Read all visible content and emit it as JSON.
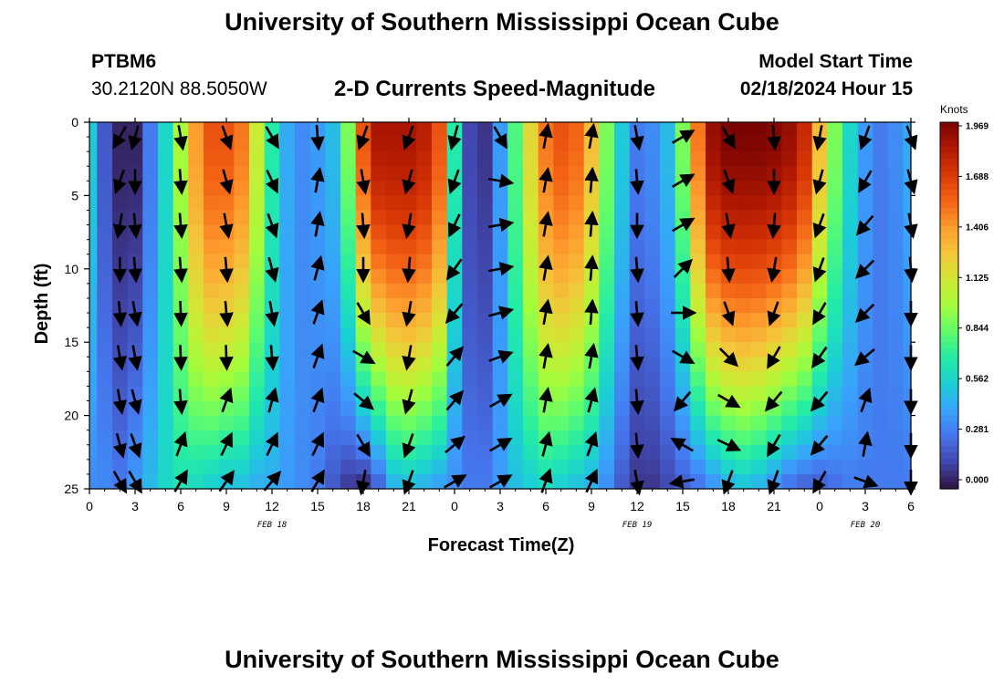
{
  "header": {
    "main_title": "University of Southern Mississippi Ocean Cube",
    "station_id": "PTBM6",
    "station_coords": "30.2120N  88.5050W",
    "plot_title": "2-D Currents Speed-Magnitude",
    "model_label": "Model Start Time",
    "model_time": "02/18/2024 Hour 15"
  },
  "footer": {
    "repeat_title": "University of Southern Mississippi Ocean Cube"
  },
  "chart_data": {
    "type": "heatmap",
    "title": "2-D Currents Speed-Magnitude",
    "xlabel": "Forecast Time(Z)",
    "ylabel": "Depth (ft)",
    "x_tick_labels": [
      "0",
      "3",
      "6",
      "9",
      "12",
      "15",
      "18",
      "21",
      "0",
      "3",
      "6",
      "9",
      "12",
      "15",
      "18",
      "21",
      "0",
      "3",
      "6"
    ],
    "x_range_hours": [
      0,
      54
    ],
    "y_ticks": [
      0,
      5,
      10,
      15,
      20,
      25
    ],
    "y_range_ft": [
      0,
      25
    ],
    "y_inverted": true,
    "day_labels": [
      {
        "text": "FEB 18",
        "hour": 12
      },
      {
        "text": "FEB 19",
        "hour": 36
      },
      {
        "text": "FEB 20",
        "hour": 51
      }
    ],
    "colorbar": {
      "unit": "Knots",
      "range": [
        0,
        1.969
      ],
      "tick_labels": [
        "1.969",
        "1.688",
        "1.406",
        "1.125",
        "0.844",
        "0.562",
        "0.281",
        "0.000"
      ],
      "colormap": [
        "#30123b",
        "#4145ab",
        "#4675ed",
        "#39a2fc",
        "#1bcfd4",
        "#24eca6",
        "#61fc6c",
        "#a4fc3b",
        "#d1e834",
        "#f3c63a",
        "#fe9b2d",
        "#f36315",
        "#d93806",
        "#b11901",
        "#7a0402"
      ]
    },
    "speed_field": {
      "description": "current speed in knots, piecewise profiles",
      "hours": [
        0,
        1,
        2,
        3,
        4,
        5,
        6,
        7,
        8,
        9,
        10,
        11,
        12,
        13,
        14,
        15,
        16,
        17,
        18,
        19,
        20,
        21,
        22,
        23,
        24,
        25,
        26,
        27,
        28,
        29,
        30,
        31,
        32,
        33,
        34,
        35,
        36,
        37,
        38,
        39,
        40,
        41,
        42,
        43,
        44,
        45,
        46,
        47,
        48,
        49,
        50,
        51,
        52,
        53,
        54
      ],
      "surface_knots": [
        0.55,
        0.2,
        0.05,
        0.05,
        0.3,
        0.6,
        1.0,
        1.4,
        1.6,
        1.6,
        1.5,
        1.1,
        0.7,
        0.45,
        0.35,
        0.4,
        0.5,
        0.9,
        1.6,
        1.85,
        1.85,
        1.85,
        1.8,
        1.6,
        0.7,
        0.15,
        0.1,
        0.4,
        0.8,
        1.2,
        1.5,
        1.6,
        1.55,
        1.3,
        0.9,
        0.55,
        0.3,
        0.35,
        0.5,
        0.9,
        1.5,
        1.9,
        1.97,
        1.97,
        1.97,
        1.95,
        1.9,
        1.75,
        1.3,
        0.9,
        0.6,
        0.4,
        0.3,
        0.35,
        0.45
      ],
      "bottom_knots": [
        0.35,
        0.35,
        0.3,
        0.4,
        0.5,
        0.6,
        0.65,
        0.6,
        0.55,
        0.5,
        0.5,
        0.45,
        0.45,
        0.4,
        0.35,
        0.3,
        0.2,
        0.1,
        0.05,
        0.2,
        0.45,
        0.5,
        0.45,
        0.4,
        0.35,
        0.3,
        0.3,
        0.4,
        0.5,
        0.55,
        0.6,
        0.55,
        0.5,
        0.45,
        0.35,
        0.2,
        0.1,
        0.1,
        0.15,
        0.2,
        0.25,
        0.35,
        0.45,
        0.5,
        0.45,
        0.35,
        0.25,
        0.2,
        0.2,
        0.25,
        0.3,
        0.3,
        0.3,
        0.3,
        0.3
      ]
    },
    "vectors": {
      "hours": [
        2,
        3,
        6,
        9,
        12,
        15,
        18,
        21,
        24,
        27,
        30,
        33,
        36,
        39,
        42,
        45,
        48,
        51,
        54
      ],
      "depths_ft": [
        1,
        4,
        7,
        10,
        13,
        16,
        19,
        22,
        24.5
      ],
      "directions_deg_from_north": [
        [
          210,
          200,
          190,
          180,
          175,
          170,
          170,
          165,
          150
        ],
        [
          195,
          180,
          175,
          175,
          170,
          170,
          165,
          160,
          150
        ],
        [
          170,
          175,
          175,
          175,
          178,
          178,
          175,
          20,
          30
        ],
        [
          160,
          165,
          170,
          175,
          175,
          178,
          20,
          25,
          35
        ],
        [
          150,
          155,
          160,
          165,
          170,
          175,
          15,
          25,
          40
        ],
        [
          175,
          10,
          10,
          15,
          20,
          20,
          20,
          25,
          30
        ],
        [
          200,
          170,
          175,
          180,
          150,
          120,
          130,
          150,
          190
        ],
        [
          200,
          195,
          190,
          185,
          190,
          190,
          195,
          200,
          200
        ],
        [
          195,
          200,
          205,
          215,
          220,
          40,
          40,
          50,
          60
        ],
        [
          150,
          100,
          80,
          80,
          75,
          70,
          60,
          60,
          60
        ],
        [
          10,
          10,
          10,
          10,
          10,
          10,
          10,
          15,
          20
        ],
        [
          10,
          5,
          5,
          5,
          5,
          10,
          15,
          20,
          25
        ],
        [
          170,
          175,
          180,
          175,
          175,
          175,
          175,
          175,
          170
        ],
        [
          60,
          60,
          60,
          45,
          90,
          120,
          220,
          300,
          260
        ],
        [
          150,
          160,
          170,
          175,
          160,
          135,
          120,
          115,
          200
        ],
        [
          175,
          180,
          185,
          190,
          200,
          210,
          220,
          210,
          200
        ],
        [
          190,
          195,
          200,
          200,
          210,
          215,
          220,
          220,
          210
        ],
        [
          200,
          210,
          220,
          225,
          225,
          230,
          20,
          10,
          110
        ],
        [
          160,
          165,
          170,
          175,
          180,
          180,
          180,
          180,
          180
        ]
      ]
    }
  }
}
